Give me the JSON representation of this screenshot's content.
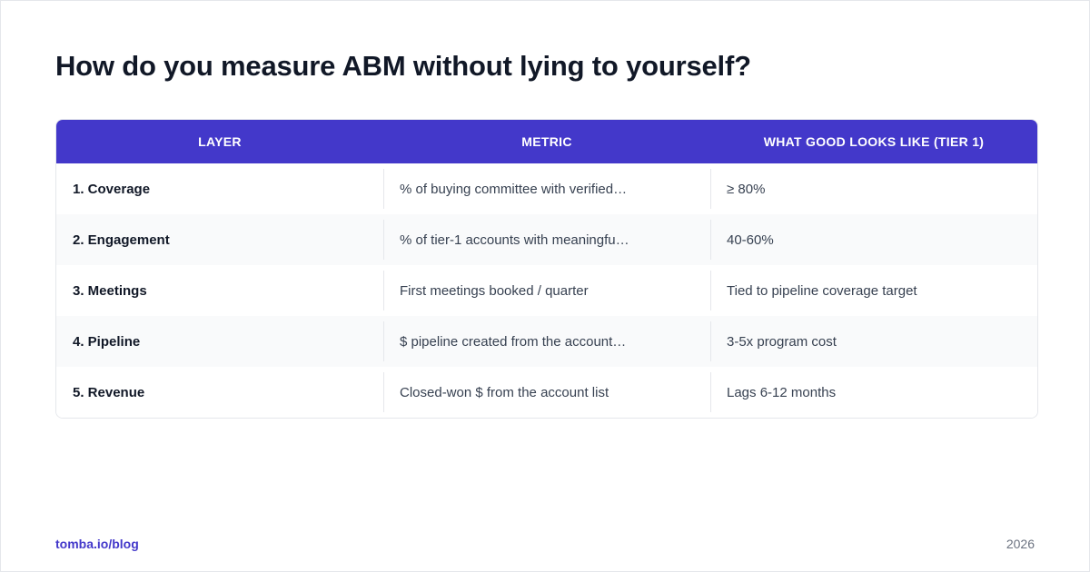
{
  "title": "How do you measure ABM without lying to yourself?",
  "table": {
    "headers": [
      "LAYER",
      "METRIC",
      "WHAT GOOD LOOKS LIKE (TIER 1)"
    ],
    "rows": [
      {
        "layer": "1. Coverage",
        "metric": "% of buying committee with verified…",
        "good": "≥ 80%"
      },
      {
        "layer": "2. Engagement",
        "metric": "% of tier-1 accounts with meaningfu…",
        "good": "40-60%"
      },
      {
        "layer": "3. Meetings",
        "metric": "First meetings booked / quarter",
        "good": "Tied to pipeline coverage target"
      },
      {
        "layer": "4. Pipeline",
        "metric": "$ pipeline created from the account…",
        "good": "3-5x program cost"
      },
      {
        "layer": "5. Revenue",
        "metric": "Closed-won $ from the account list",
        "good": "Lags 6-12 months"
      }
    ]
  },
  "footer": {
    "link": "tomba.io/blog",
    "year": "2026"
  },
  "colors": {
    "header_bg": "#4338ca",
    "accent": "#4338ca",
    "title": "#111827"
  }
}
